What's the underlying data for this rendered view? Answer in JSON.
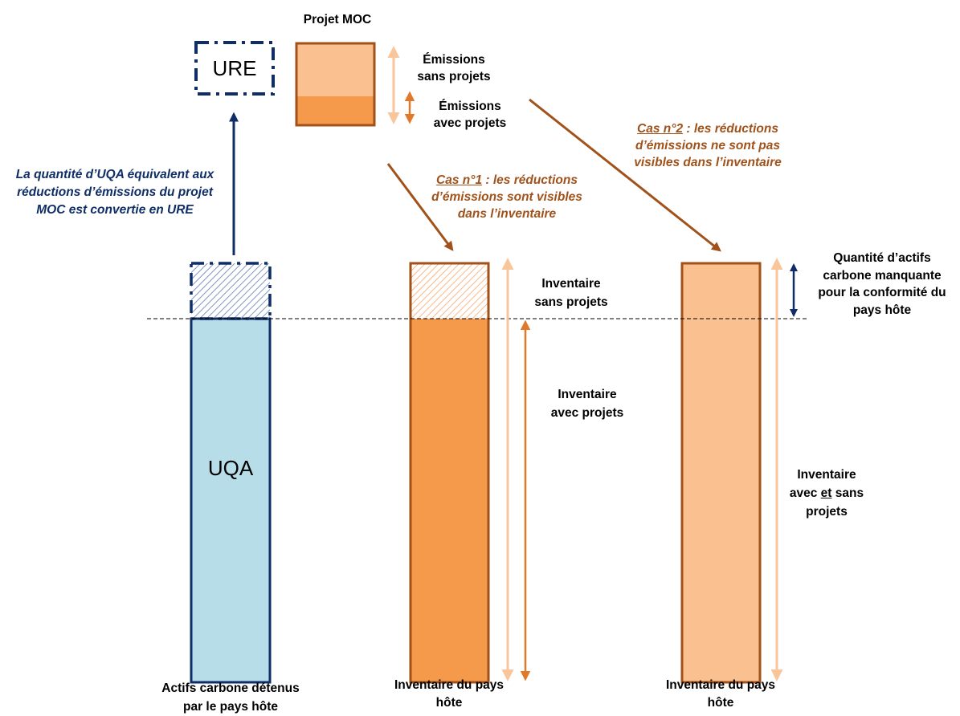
{
  "top": {
    "project_title": "Projet MOC",
    "ure_label": "URE",
    "emissions_without": [
      "Émissions",
      "sans projets"
    ],
    "emissions_with": [
      "Émissions",
      "avec projets"
    ]
  },
  "conversion_note": [
    "La quantité d’UQA équivalent aux",
    "réductions d’émissions du projet",
    "MOC est convertie en URE"
  ],
  "case1": {
    "lead": "Cas n°1",
    "lines": [
      ": les réductions",
      "d’émissions sont visibles",
      "dans l’inventaire"
    ]
  },
  "case2": {
    "lead": "Cas n°2",
    "lines": [
      ": les réductions",
      "d’émissions ne sont pas",
      "visibles dans l’inventaire"
    ]
  },
  "bar1": {
    "inner_label": "UQA",
    "caption": [
      "Actifs carbone détenus",
      "par le pays hôte"
    ]
  },
  "bar2": {
    "inventory_without": [
      "Inventaire",
      "sans projets"
    ],
    "inventory_with": [
      "Inventaire",
      "avec projets"
    ],
    "caption": [
      "Inventaire du pays",
      "hôte"
    ]
  },
  "bar3": {
    "missing_assets": [
      "Quantité d’actifs",
      "carbone manquante",
      "pour la conformité du",
      "pays hôte"
    ],
    "inventory_both": {
      "first": "Inventaire",
      "prefix": "avec ",
      "underlined": "et",
      "suffix": " sans",
      "last": "projets"
    },
    "caption": [
      "Inventaire du pays",
      "hôte"
    ]
  },
  "colors": {
    "navy": "#0f2d66",
    "light_blue": "#b7dde8",
    "orange": "#f5994a",
    "light_orange": "#fac090",
    "brown": "#a0521a",
    "pale_orange_arrow": "#f9c69c"
  }
}
